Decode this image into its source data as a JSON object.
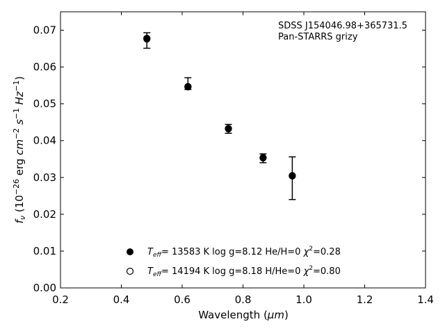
{
  "chart_data": {
    "type": "scatter",
    "xlabel_main": "Wavelength (",
    "xlabel_unit": "μm",
    "xlabel_close": ")",
    "ylabel": {
      "f": "f",
      "nu": "ν",
      "open": " (10",
      "exp": "−26",
      "erg": " erg ",
      "cm": "cm",
      "cm_exp": "−2",
      "s": " s",
      "s_exp": "−1",
      "hz": " Hz",
      "hz_exp": "−1",
      "close": ")"
    },
    "xlim": [
      0.2,
      1.4
    ],
    "ylim": [
      0.0,
      0.075
    ],
    "xticks": [
      0.2,
      0.4,
      0.6,
      0.8,
      1.0,
      1.2,
      1.4
    ],
    "xtick_labels": [
      "0.2",
      "0.4",
      "0.6",
      "0.8",
      "1.0",
      "1.2",
      "1.4"
    ],
    "yticks": [
      0.0,
      0.01,
      0.02,
      0.03,
      0.04,
      0.05,
      0.06,
      0.07
    ],
    "ytick_labels": [
      "0.00",
      "0.01",
      "0.02",
      "0.03",
      "0.04",
      "0.05",
      "0.06",
      "0.07"
    ],
    "annotations": [
      "SDSS J154046.98+365731.5",
      "Pan-STARRS grizy"
    ],
    "observed": {
      "x": [
        0.484,
        0.619,
        0.752,
        0.866,
        0.962
      ],
      "y": [
        0.0672,
        0.0555,
        0.0432,
        0.0352,
        0.0298
      ],
      "err": [
        0.0021,
        0.0016,
        0.0012,
        0.0012,
        0.0058
      ]
    },
    "series": [
      {
        "name": "Teff= 13583 K  log g=8.12  He/H=0  χ²=0.28",
        "marker": "filled",
        "legend": {
          "t": "T",
          "eff": "eff",
          "rest": "= 13583 K  log g=8.12  He/H=0  ",
          "chi": "χ",
          "two": "2",
          "val": "=0.28"
        },
        "x": [
          0.484,
          0.619,
          0.752,
          0.866,
          0.962
        ],
        "y": [
          0.0676,
          0.0546,
          0.0433,
          0.0354,
          0.0305
        ]
      },
      {
        "name": "Teff= 14194 K  log g=8.18  H/He=0  χ²=0.80",
        "marker": "open",
        "legend": {
          "t": "T",
          "eff": "eff",
          "rest": "= 14194 K  log g=8.18  H/He=0  ",
          "chi": "χ",
          "two": "2",
          "val": "=0.80"
        },
        "x": [
          0.484,
          0.619,
          0.752,
          0.866,
          0.962
        ],
        "y": [
          0.0678,
          0.0547,
          0.0432,
          0.0353,
          0.0304
        ]
      }
    ],
    "colors": {
      "marker": "#000000",
      "axis": "#000000",
      "background": "#ffffff"
    },
    "grid": false,
    "legend_placement": "lower-center"
  }
}
